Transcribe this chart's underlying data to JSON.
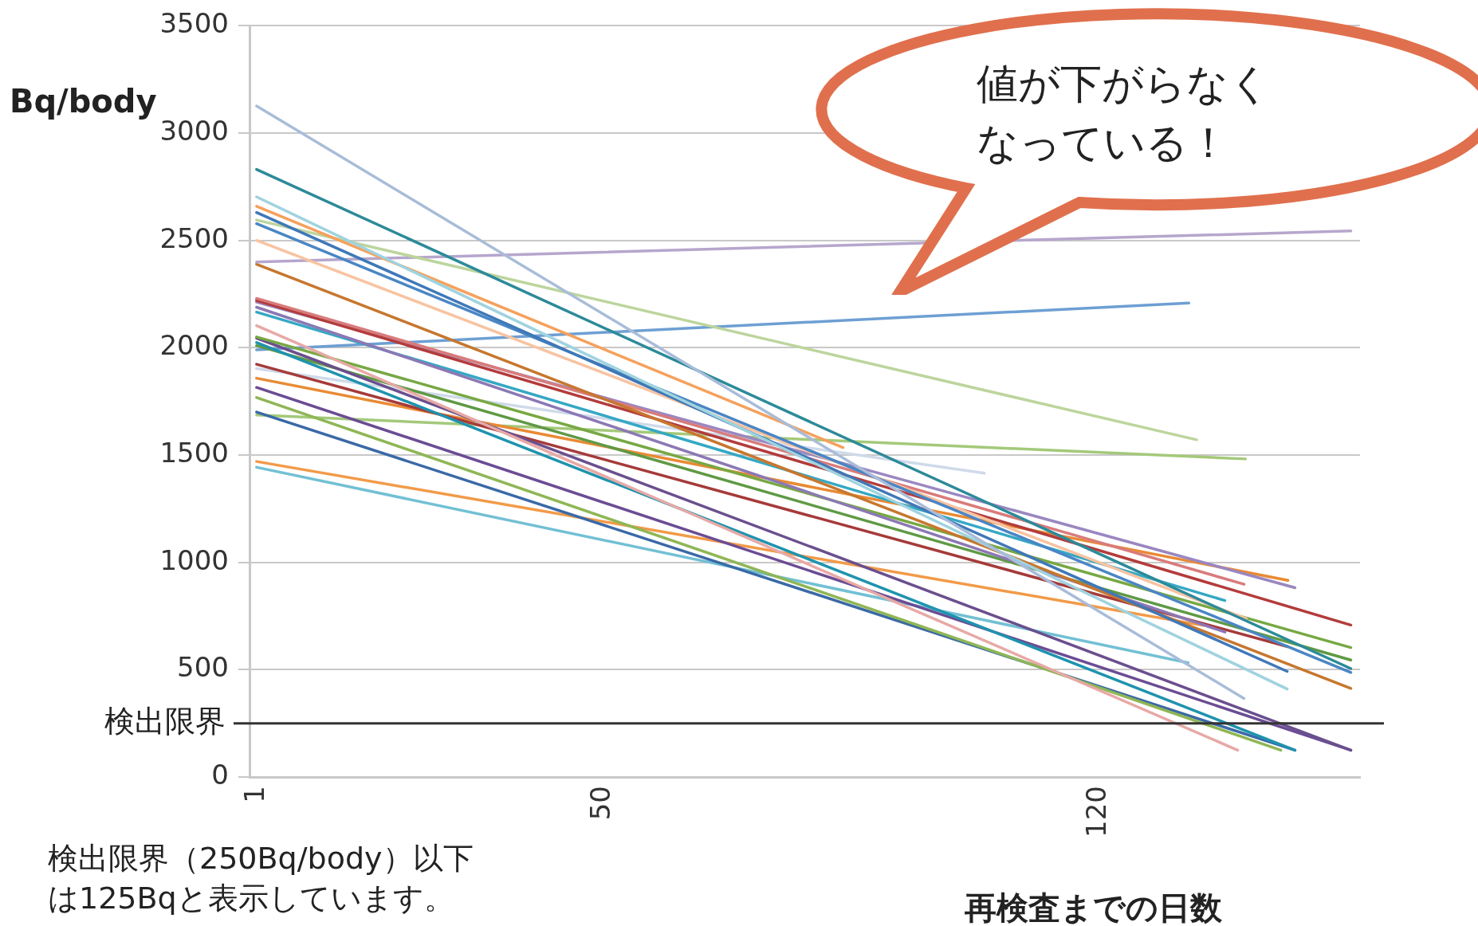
{
  "chart_data": {
    "type": "line",
    "xlabel": "再検査までの日数",
    "ylabel": "Bq/body",
    "xlim": [
      0,
      157
    ],
    "xticks": [
      1,
      50,
      120
    ],
    "ylim": [
      0,
      3500
    ],
    "yticks": [
      0,
      500,
      1000,
      1500,
      2000,
      2500,
      3000,
      3500
    ],
    "grid": "y",
    "legend": false,
    "marker": "none",
    "line_style": "solid",
    "ref_lines": [
      {
        "axis": "y",
        "value": 250,
        "label": "検出限界",
        "color": "#333333"
      }
    ],
    "annotations": [
      "値が下がらなくなっている！",
      "検出限界（250Bq/body）以下は125Bqと表示しています。"
    ],
    "series": [
      {
        "color": "#a9bcd9",
        "x": [
          1,
          140.6
        ],
        "values": [
          3126,
          366
        ]
      },
      {
        "color": "#2c8a99",
        "x": [
          1,
          155.7
        ],
        "values": [
          2831,
          505
        ]
      },
      {
        "color": "#9fd3df",
        "x": [
          1,
          146.7
        ],
        "values": [
          2703,
          410
        ]
      },
      {
        "color": "#f5a15c",
        "x": [
          1,
          83.9
        ],
        "values": [
          2659,
          1535
        ]
      },
      {
        "color": "#3f78b8",
        "x": [
          1,
          146.7
        ],
        "values": [
          2630,
          492
        ]
      },
      {
        "color": "#bcd59d",
        "x": [
          1,
          133.9
        ],
        "values": [
          2595,
          1571
        ]
      },
      {
        "color": "#4a86c4",
        "x": [
          1,
          155.7
        ],
        "values": [
          2578,
          487
        ]
      },
      {
        "color": "#f8c3a0",
        "x": [
          1,
          140.9
        ],
        "values": [
          2500,
          738
        ]
      },
      {
        "color": "#b6a6cc",
        "x": [
          1,
          155.7
        ],
        "values": [
          2400,
          2544
        ]
      },
      {
        "color": "#c7772e",
        "x": [
          1,
          155.7
        ],
        "values": [
          2389,
          413
        ]
      },
      {
        "color": "#d97b7b",
        "x": [
          1,
          140.6
        ],
        "values": [
          2230,
          898
        ]
      },
      {
        "color": "#b33c3c",
        "x": [
          1,
          155.7
        ],
        "values": [
          2220,
          708
        ]
      },
      {
        "color": "#9a87c0",
        "x": [
          1,
          147.8
        ],
        "values": [
          2213,
          882
        ]
      },
      {
        "color": "#8c78b4",
        "x": [
          1,
          137.9
        ],
        "values": [
          2189,
          675
        ]
      },
      {
        "color": "#35a8c4",
        "x": [
          1,
          137.9
        ],
        "values": [
          2166,
          822
        ]
      },
      {
        "color": "#e7a9a6",
        "x": [
          1,
          139.7
        ],
        "values": [
          2103,
          125
        ]
      },
      {
        "color": "#77a843",
        "x": [
          1,
          155.7
        ],
        "values": [
          2050,
          603
        ]
      },
      {
        "color": "#6a4f8e",
        "x": [
          1,
          155.7
        ],
        "values": [
          2045,
          125
        ]
      },
      {
        "color": "#1f93ae",
        "x": [
          1,
          147.8
        ],
        "values": [
          2024,
          125
        ]
      },
      {
        "color": "#5f9944",
        "x": [
          1,
          155.7
        ],
        "values": [
          2010,
          545
        ]
      },
      {
        "color": "#6e9fd3",
        "x": [
          1,
          132.8
        ],
        "values": [
          1990,
          2208
        ]
      },
      {
        "color": "#a63a3a",
        "x": [
          1,
          146.8
        ],
        "values": [
          1923,
          607
        ]
      },
      {
        "color": "#cfdaea",
        "x": [
          1,
          103.9
        ],
        "values": [
          1903,
          1416
        ]
      },
      {
        "color": "#e98a34",
        "x": [
          1,
          146.8
        ],
        "values": [
          1858,
          916
        ]
      },
      {
        "color": "#6b4c94",
        "x": [
          1,
          155.7
        ],
        "values": [
          1815,
          125
        ]
      },
      {
        "color": "#8fb655",
        "x": [
          1,
          145.8
        ],
        "values": [
          1768,
          125
        ]
      },
      {
        "color": "#3a69a6",
        "x": [
          1,
          147.8
        ],
        "values": [
          1700,
          125
        ]
      },
      {
        "color": "#a4c97a",
        "x": [
          1,
          140.8
        ],
        "values": [
          1687,
          1482
        ]
      },
      {
        "color": "#f29a48",
        "x": [
          1,
          134.9
        ],
        "values": [
          1470,
          706
        ]
      },
      {
        "color": "#72c0d4",
        "x": [
          1,
          132.7
        ],
        "values": [
          1443,
          532
        ]
      }
    ]
  }
}
